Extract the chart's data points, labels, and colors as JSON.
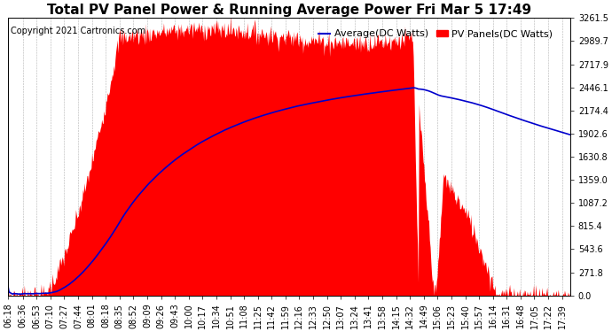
{
  "title": "Total PV Panel Power & Running Average Power Fri Mar 5 17:49",
  "copyright": "Copyright 2021 Cartronics.com",
  "legend_avg": "Average(DC Watts)",
  "legend_pv": "PV Panels(DC Watts)",
  "ylim": [
    0.0,
    3261.5
  ],
  "yticks": [
    0.0,
    271.8,
    543.6,
    815.4,
    1087.2,
    1359.0,
    1630.8,
    1902.6,
    2174.4,
    2446.1,
    2717.9,
    2989.7,
    3261.5
  ],
  "bg_color": "#ffffff",
  "fill_color": "#ff0000",
  "avg_line_color": "#0000cc",
  "grid_color": "#aaaaaa",
  "title_fontsize": 11,
  "tick_fontsize": 7,
  "copyright_fontsize": 7,
  "legend_fontsize": 8,
  "x_labels": [
    "06:18",
    "06:36",
    "06:53",
    "07:10",
    "07:27",
    "07:44",
    "08:01",
    "08:18",
    "08:35",
    "08:52",
    "09:09",
    "09:26",
    "09:43",
    "10:00",
    "10:17",
    "10:34",
    "10:51",
    "11:08",
    "11:25",
    "11:42",
    "11:59",
    "12:16",
    "12:33",
    "12:50",
    "13:07",
    "13:24",
    "13:41",
    "13:58",
    "14:15",
    "14:32",
    "14:49",
    "15:06",
    "15:23",
    "15:40",
    "15:57",
    "16:14",
    "16:31",
    "16:48",
    "17:05",
    "17:22",
    "17:39"
  ],
  "num_points": 800
}
